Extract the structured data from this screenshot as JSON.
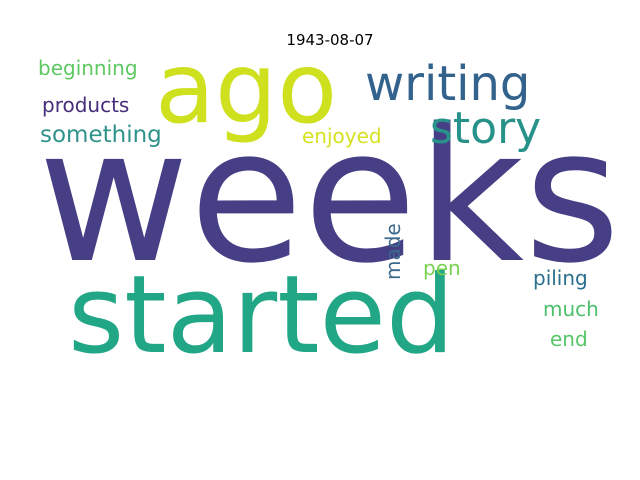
{
  "title": "1943-08-07",
  "words": [
    {
      "text": "weeks",
      "color": "#463f85",
      "weight": 1.0
    },
    {
      "text": "started",
      "color": "#21a686",
      "weight": 0.55
    },
    {
      "text": "ago",
      "color": "#cfe01f",
      "weight": 0.5
    },
    {
      "text": "writing",
      "color": "#33638d",
      "weight": 0.22
    },
    {
      "text": "story",
      "color": "#279289",
      "weight": 0.2
    },
    {
      "text": "something",
      "color": "#2f938b",
      "weight": 0.1
    },
    {
      "text": "beginning",
      "color": "#5ec962",
      "weight": 0.1
    },
    {
      "text": "products",
      "color": "#472d7b",
      "weight": 0.1
    },
    {
      "text": "enjoyed",
      "color": "#d6e221",
      "weight": 0.1
    },
    {
      "text": "made",
      "color": "#3c6a8c",
      "weight": 0.1
    },
    {
      "text": "pen",
      "color": "#7ad151",
      "weight": 0.1
    },
    {
      "text": "piling",
      "color": "#2b6f8e",
      "weight": 0.1
    },
    {
      "text": "much",
      "color": "#4bbf6b",
      "weight": 0.1
    },
    {
      "text": "end",
      "color": "#56c667",
      "weight": 0.1
    }
  ]
}
